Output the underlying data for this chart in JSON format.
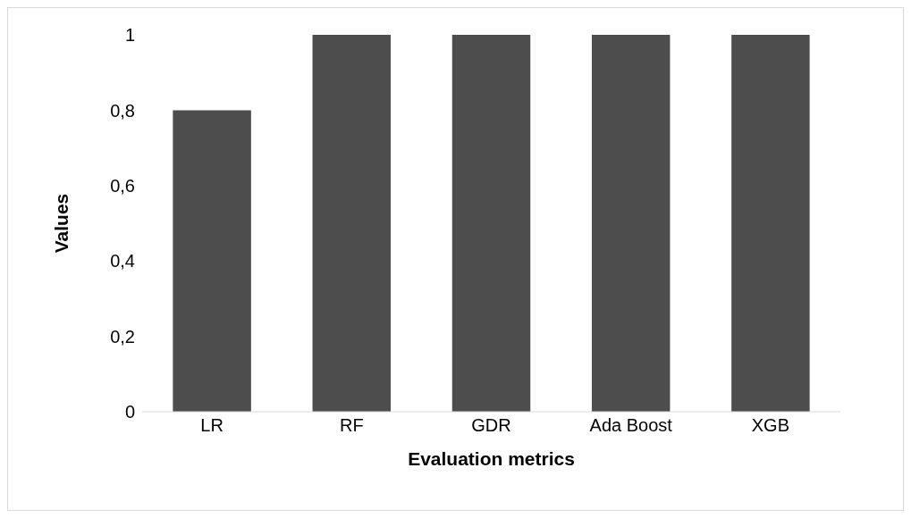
{
  "chart_data": {
    "type": "bar",
    "xlabel": "Evaluation metrics",
    "ylabel": "Values",
    "categories": [
      "LR",
      "RF",
      "GDR",
      "Ada Boost",
      "XGB"
    ],
    "values": [
      0.8,
      1.0,
      1.0,
      1.0,
      1.0
    ],
    "color": "#4d4d4d",
    "ylim": [
      0,
      1
    ],
    "yticks": [
      0,
      {
        "value": 0.2,
        "label": "0,2"
      },
      {
        "value": 0.4,
        "label": "0,4"
      },
      {
        "value": 0.6,
        "label": "0,6"
      },
      {
        "value": 0.8,
        "label": "0,8"
      },
      1
    ],
    "grid": false,
    "legend": false
  }
}
